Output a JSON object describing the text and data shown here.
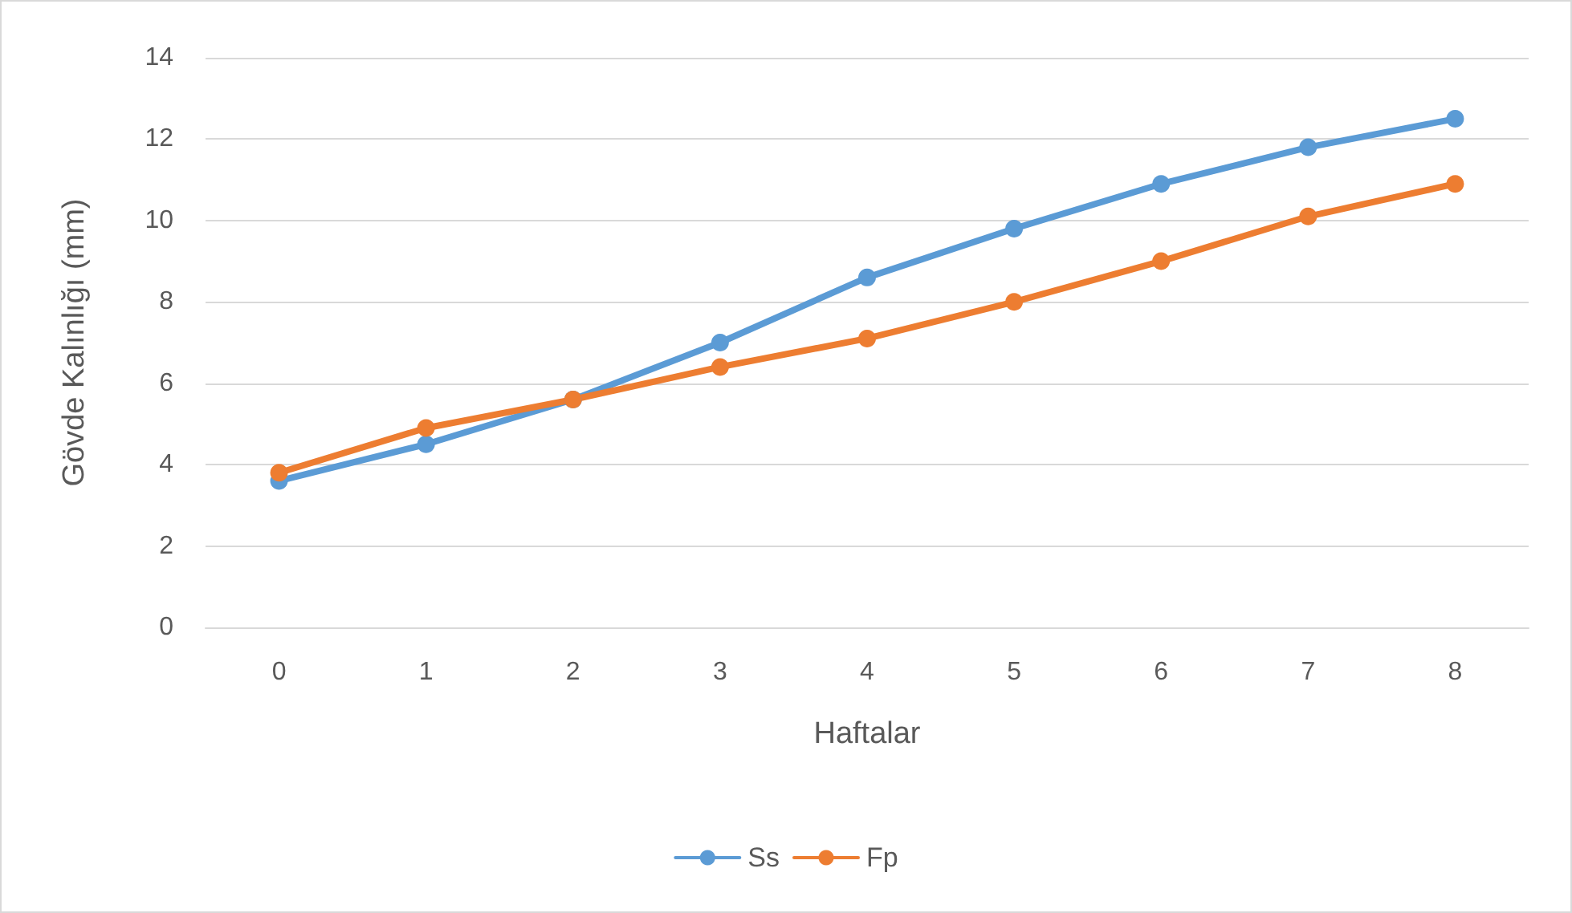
{
  "chart_data": {
    "type": "line",
    "xlabel": "Haftalar",
    "ylabel": "Gövde Kalınlığı (mm)",
    "categories": [
      "0",
      "1",
      "2",
      "3",
      "4",
      "5",
      "6",
      "7",
      "8"
    ],
    "series": [
      {
        "name": "Ss",
        "color": "#5b9bd5",
        "values": [
          3.6,
          4.5,
          5.6,
          7.0,
          8.6,
          9.8,
          10.9,
          11.8,
          12.5
        ]
      },
      {
        "name": "Fp",
        "color": "#ed7d31",
        "values": [
          3.8,
          4.9,
          5.6,
          6.4,
          7.1,
          8.0,
          9.0,
          10.1,
          10.9
        ]
      }
    ],
    "ylim": [
      0,
      14
    ],
    "yticks": [
      0,
      2,
      4,
      6,
      8,
      10,
      12,
      14
    ],
    "grid": "y",
    "legend": "bottom",
    "marker": "circle",
    "line_style": "solid"
  }
}
